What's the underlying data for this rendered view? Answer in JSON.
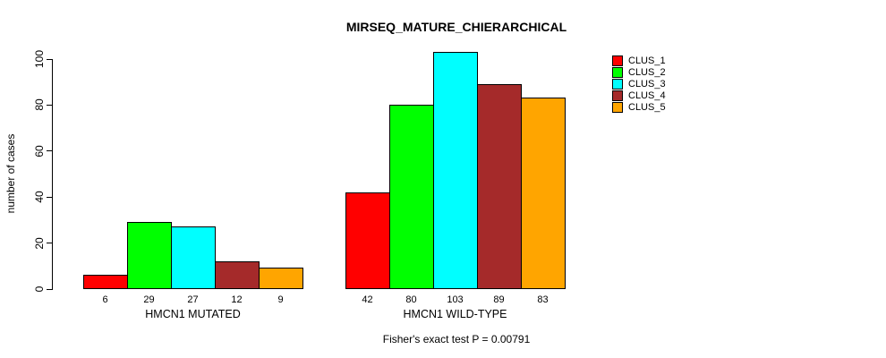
{
  "chart_data": {
    "type": "bar",
    "title": "MIRSEQ_MATURE_CHIERARCHICAL",
    "ylabel": "number of cases",
    "xlabel": "",
    "footer": "Fisher's exact test P = 0.00791",
    "ylim": [
      0,
      100
    ],
    "yticks": [
      0,
      20,
      40,
      60,
      80,
      100
    ],
    "grid": false,
    "legend_position": "top-right",
    "bar_value_labels": true,
    "series": [
      {
        "name": "CLUS_1",
        "color": "#FF0000"
      },
      {
        "name": "CLUS_2",
        "color": "#00FF00"
      },
      {
        "name": "CLUS_3",
        "color": "#00FFFF"
      },
      {
        "name": "CLUS_4",
        "color": "#A52A2A"
      },
      {
        "name": "CLUS_5",
        "color": "#FFA500"
      }
    ],
    "categories": [
      "HMCN1 MUTATED",
      "HMCN1 WILD-TYPE"
    ],
    "groups": [
      {
        "label": "HMCN1 MUTATED",
        "values": [
          6,
          29,
          27,
          12,
          9
        ]
      },
      {
        "label": "HMCN1 WILD-TYPE",
        "values": [
          42,
          80,
          103,
          89,
          83
        ]
      }
    ]
  }
}
